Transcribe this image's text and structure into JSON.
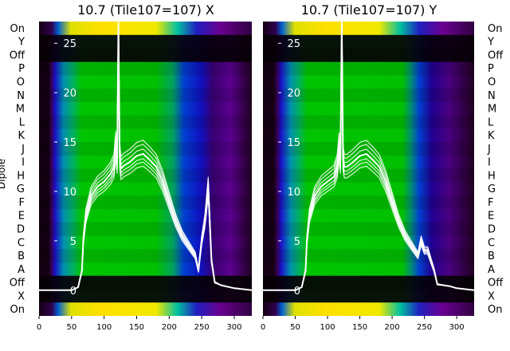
{
  "chart_data": [
    {
      "type": "heatmap",
      "title": "10.7 (Tile107=107) X",
      "xlabel": "",
      "ylabel": "Dipole",
      "row_labels": [
        "On",
        "Y",
        "Off",
        "P",
        "O",
        "N",
        "M",
        "L",
        "K",
        "J",
        "I",
        "H",
        "G",
        "F",
        "E",
        "D",
        "C",
        "B",
        "A",
        "Off",
        "X",
        "On"
      ],
      "x_ticks": [
        0,
        50,
        100,
        150,
        200,
        250,
        300
      ],
      "xlim": [
        0,
        327
      ],
      "overlay_y_ticks": [
        0,
        5,
        10,
        15,
        20,
        25
      ],
      "overlay_ylim": [
        -2.6,
        27.2
      ],
      "overlay_line": {
        "x": [
          0,
          20,
          50,
          60,
          66,
          68,
          72,
          80,
          90,
          100,
          110,
          115,
          118,
          120,
          122,
          124,
          126,
          130,
          140,
          150,
          160,
          170,
          180,
          190,
          200,
          210,
          220,
          230,
          240,
          245,
          250,
          255,
          260,
          265,
          270,
          280,
          300,
          327
        ],
        "y": [
          0,
          0,
          0,
          0.3,
          2,
          5,
          7.5,
          9.5,
          10.5,
          11,
          11.8,
          12.5,
          14.6,
          13,
          26.8,
          13.5,
          12.3,
          12.6,
          13,
          13.6,
          13.8,
          13.2,
          12.5,
          11,
          9,
          7,
          5.5,
          4.5,
          3.5,
          2,
          5,
          7,
          10.4,
          3,
          0.8,
          0.5,
          0.2,
          0
        ]
      }
    },
    {
      "type": "heatmap",
      "title": "10.7 (Tile107=107) Y",
      "xlabel": "",
      "ylabel": "",
      "row_labels": [
        "On",
        "Y",
        "Off",
        "P",
        "O",
        "N",
        "M",
        "L",
        "K",
        "J",
        "I",
        "H",
        "G",
        "F",
        "E",
        "D",
        "C",
        "B",
        "A",
        "Off",
        "X",
        "On"
      ],
      "x_ticks": [
        0,
        50,
        100,
        150,
        200,
        250,
        300
      ],
      "xlim": [
        0,
        327
      ],
      "overlay_y_ticks": [
        0,
        5,
        10,
        15,
        20,
        25
      ],
      "overlay_ylim": [
        -2.6,
        27.2
      ],
      "overlay_line": {
        "x": [
          0,
          20,
          50,
          60,
          66,
          68,
          72,
          80,
          90,
          100,
          110,
          115,
          118,
          120,
          122,
          124,
          126,
          130,
          140,
          150,
          160,
          170,
          180,
          190,
          200,
          210,
          220,
          230,
          240,
          245,
          250,
          255,
          260,
          265,
          270,
          280,
          290,
          300,
          327
        ],
        "y": [
          0,
          0,
          0,
          0.3,
          2,
          5,
          7.5,
          9.5,
          10.5,
          11,
          11.5,
          12.5,
          14.5,
          13,
          26.8,
          13.3,
          12.5,
          12.5,
          13,
          13.6,
          13.8,
          13.2,
          12.5,
          11,
          9,
          7,
          5.5,
          4.5,
          3.5,
          5,
          4,
          4,
          3,
          2,
          0.6,
          0.5,
          0.4,
          0.2,
          0
        ]
      }
    }
  ]
}
